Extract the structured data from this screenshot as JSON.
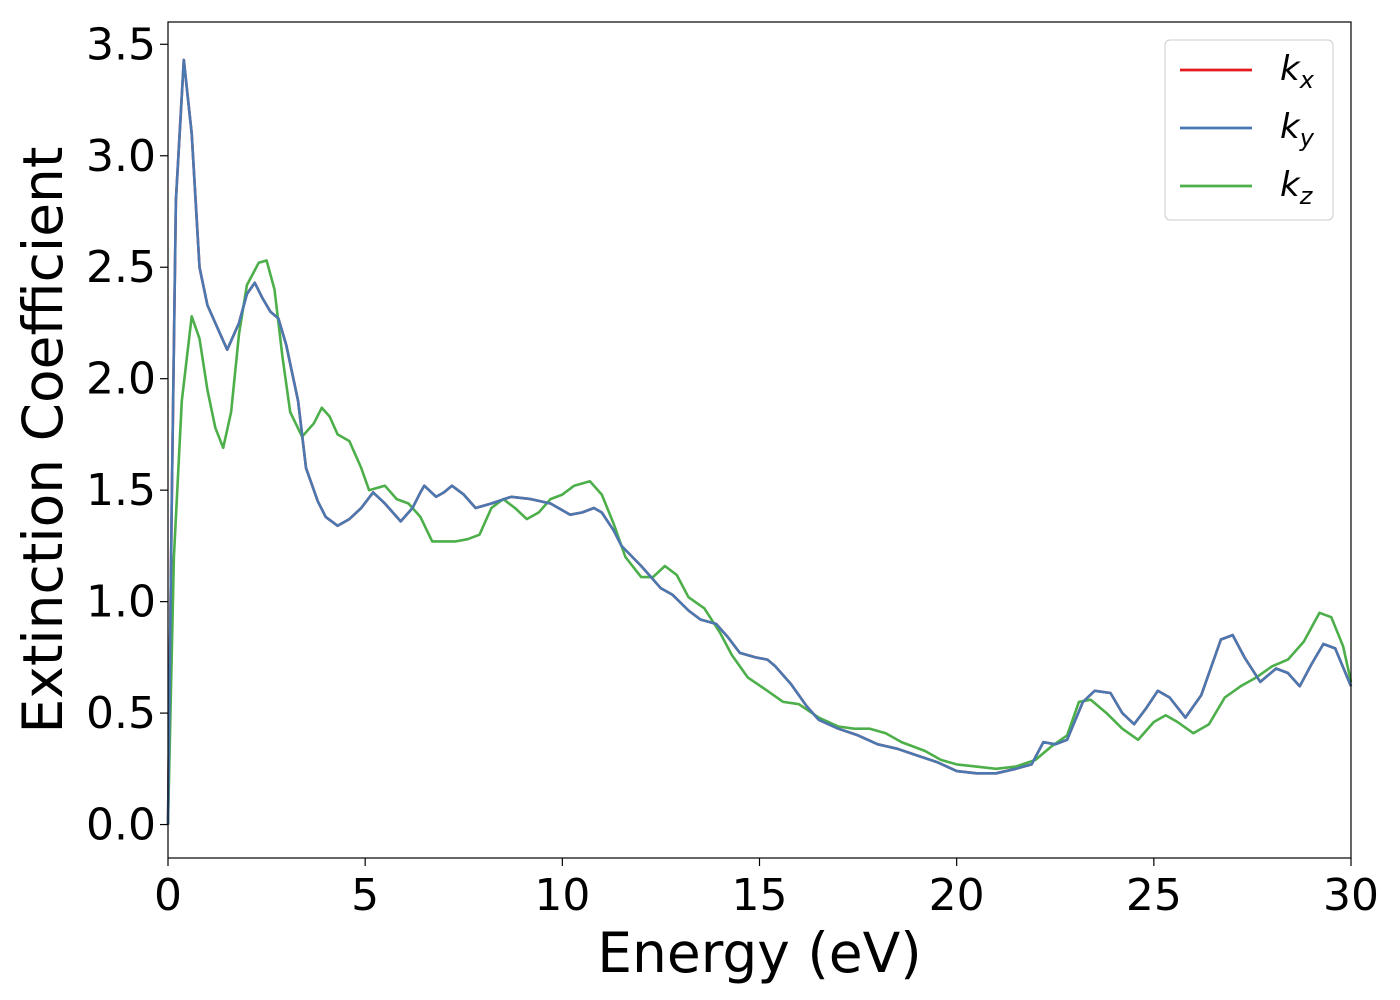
{
  "chart_data": {
    "type": "line",
    "xlabel": "Energy (eV)",
    "ylabel": "Extinction Coefficient",
    "xlim": [
      0,
      30
    ],
    "ylim": [
      -0.15,
      3.6
    ],
    "xticks": [
      0,
      5,
      10,
      15,
      20,
      25,
      30
    ],
    "xtick_labels": [
      "0",
      "5",
      "10",
      "15",
      "20",
      "25",
      "30"
    ],
    "yticks": [
      0.0,
      0.5,
      1.0,
      1.5,
      2.0,
      2.5,
      3.0,
      3.5
    ],
    "ytick_labels": [
      "0.0",
      "0.5",
      "1.0",
      "1.5",
      "2.0",
      "2.5",
      "3.0",
      "3.5"
    ],
    "grid": false,
    "legend_position": "top-right",
    "series": [
      {
        "name": "k_x",
        "label_base": "k",
        "label_sub": "x",
        "color": "#e41a1c",
        "points": [
          [
            0,
            0.0
          ],
          [
            0.1,
            1.5
          ],
          [
            0.2,
            2.8
          ],
          [
            0.4,
            3.43
          ],
          [
            0.6,
            3.1
          ],
          [
            0.8,
            2.5
          ],
          [
            1.0,
            2.33
          ],
          [
            1.2,
            2.25
          ],
          [
            1.5,
            2.13
          ],
          [
            1.8,
            2.25
          ],
          [
            2.0,
            2.38
          ],
          [
            2.2,
            2.43
          ],
          [
            2.4,
            2.36
          ],
          [
            2.6,
            2.3
          ],
          [
            2.8,
            2.27
          ],
          [
            3.0,
            2.15
          ],
          [
            3.3,
            1.9
          ],
          [
            3.5,
            1.6
          ],
          [
            3.8,
            1.45
          ],
          [
            4.0,
            1.38
          ],
          [
            4.3,
            1.34
          ],
          [
            4.6,
            1.37
          ],
          [
            4.9,
            1.42
          ],
          [
            5.2,
            1.49
          ],
          [
            5.5,
            1.44
          ],
          [
            5.9,
            1.36
          ],
          [
            6.2,
            1.42
          ],
          [
            6.4,
            1.49
          ],
          [
            6.5,
            1.52
          ],
          [
            6.8,
            1.47
          ],
          [
            7.0,
            1.49
          ],
          [
            7.2,
            1.52
          ],
          [
            7.5,
            1.48
          ],
          [
            7.8,
            1.42
          ],
          [
            8.2,
            1.44
          ],
          [
            8.7,
            1.47
          ],
          [
            9.2,
            1.46
          ],
          [
            9.7,
            1.44
          ],
          [
            10.2,
            1.39
          ],
          [
            10.5,
            1.4
          ],
          [
            10.8,
            1.42
          ],
          [
            11.0,
            1.4
          ],
          [
            11.3,
            1.32
          ],
          [
            11.5,
            1.25
          ],
          [
            12.0,
            1.16
          ],
          [
            12.5,
            1.06
          ],
          [
            12.8,
            1.03
          ],
          [
            13.2,
            0.96
          ],
          [
            13.5,
            0.92
          ],
          [
            13.9,
            0.9
          ],
          [
            14.2,
            0.84
          ],
          [
            14.5,
            0.77
          ],
          [
            14.9,
            0.75
          ],
          [
            15.2,
            0.74
          ],
          [
            15.4,
            0.71
          ],
          [
            15.8,
            0.63
          ],
          [
            16.2,
            0.53
          ],
          [
            16.5,
            0.47
          ],
          [
            17.0,
            0.43
          ],
          [
            17.5,
            0.4
          ],
          [
            18.0,
            0.36
          ],
          [
            18.5,
            0.34
          ],
          [
            19.0,
            0.31
          ],
          [
            19.5,
            0.28
          ],
          [
            20.0,
            0.24
          ],
          [
            20.5,
            0.23
          ],
          [
            21.0,
            0.23
          ],
          [
            21.5,
            0.25
          ],
          [
            21.9,
            0.27
          ],
          [
            22.2,
            0.37
          ],
          [
            22.5,
            0.36
          ],
          [
            22.8,
            0.38
          ],
          [
            23.2,
            0.55
          ],
          [
            23.5,
            0.6
          ],
          [
            23.9,
            0.59
          ],
          [
            24.2,
            0.5
          ],
          [
            24.5,
            0.45
          ],
          [
            24.8,
            0.52
          ],
          [
            25.1,
            0.6
          ],
          [
            25.4,
            0.57
          ],
          [
            25.8,
            0.48
          ],
          [
            26.2,
            0.58
          ],
          [
            26.7,
            0.83
          ],
          [
            27.0,
            0.85
          ],
          [
            27.3,
            0.75
          ],
          [
            27.7,
            0.64
          ],
          [
            28.1,
            0.7
          ],
          [
            28.4,
            0.68
          ],
          [
            28.7,
            0.62
          ],
          [
            29.0,
            0.72
          ],
          [
            29.3,
            0.81
          ],
          [
            29.6,
            0.79
          ],
          [
            30.0,
            0.62
          ]
        ]
      },
      {
        "name": "k_y",
        "label_base": "k",
        "label_sub": "y",
        "color": "#4a78b0",
        "points": [
          [
            0,
            0.0
          ],
          [
            0.1,
            1.5
          ],
          [
            0.2,
            2.8
          ],
          [
            0.4,
            3.43
          ],
          [
            0.6,
            3.1
          ],
          [
            0.8,
            2.5
          ],
          [
            1.0,
            2.33
          ],
          [
            1.2,
            2.25
          ],
          [
            1.5,
            2.13
          ],
          [
            1.8,
            2.25
          ],
          [
            2.0,
            2.38
          ],
          [
            2.2,
            2.43
          ],
          [
            2.4,
            2.36
          ],
          [
            2.6,
            2.3
          ],
          [
            2.8,
            2.27
          ],
          [
            3.0,
            2.15
          ],
          [
            3.3,
            1.9
          ],
          [
            3.5,
            1.6
          ],
          [
            3.8,
            1.45
          ],
          [
            4.0,
            1.38
          ],
          [
            4.3,
            1.34
          ],
          [
            4.6,
            1.37
          ],
          [
            4.9,
            1.42
          ],
          [
            5.2,
            1.49
          ],
          [
            5.5,
            1.44
          ],
          [
            5.9,
            1.36
          ],
          [
            6.2,
            1.42
          ],
          [
            6.4,
            1.49
          ],
          [
            6.5,
            1.52
          ],
          [
            6.8,
            1.47
          ],
          [
            7.0,
            1.49
          ],
          [
            7.2,
            1.52
          ],
          [
            7.5,
            1.48
          ],
          [
            7.8,
            1.42
          ],
          [
            8.2,
            1.44
          ],
          [
            8.7,
            1.47
          ],
          [
            9.2,
            1.46
          ],
          [
            9.7,
            1.44
          ],
          [
            10.2,
            1.39
          ],
          [
            10.5,
            1.4
          ],
          [
            10.8,
            1.42
          ],
          [
            11.0,
            1.4
          ],
          [
            11.3,
            1.32
          ],
          [
            11.5,
            1.25
          ],
          [
            12.0,
            1.16
          ],
          [
            12.5,
            1.06
          ],
          [
            12.8,
            1.03
          ],
          [
            13.2,
            0.96
          ],
          [
            13.5,
            0.92
          ],
          [
            13.9,
            0.9
          ],
          [
            14.2,
            0.84
          ],
          [
            14.5,
            0.77
          ],
          [
            14.9,
            0.75
          ],
          [
            15.2,
            0.74
          ],
          [
            15.4,
            0.71
          ],
          [
            15.8,
            0.63
          ],
          [
            16.2,
            0.53
          ],
          [
            16.5,
            0.47
          ],
          [
            17.0,
            0.43
          ],
          [
            17.5,
            0.4
          ],
          [
            18.0,
            0.36
          ],
          [
            18.5,
            0.34
          ],
          [
            19.0,
            0.31
          ],
          [
            19.5,
            0.28
          ],
          [
            20.0,
            0.24
          ],
          [
            20.5,
            0.23
          ],
          [
            21.0,
            0.23
          ],
          [
            21.5,
            0.25
          ],
          [
            21.9,
            0.27
          ],
          [
            22.2,
            0.37
          ],
          [
            22.5,
            0.36
          ],
          [
            22.8,
            0.38
          ],
          [
            23.2,
            0.55
          ],
          [
            23.5,
            0.6
          ],
          [
            23.9,
            0.59
          ],
          [
            24.2,
            0.5
          ],
          [
            24.5,
            0.45
          ],
          [
            24.8,
            0.52
          ],
          [
            25.1,
            0.6
          ],
          [
            25.4,
            0.57
          ],
          [
            25.8,
            0.48
          ],
          [
            26.2,
            0.58
          ],
          [
            26.7,
            0.83
          ],
          [
            27.0,
            0.85
          ],
          [
            27.3,
            0.75
          ],
          [
            27.7,
            0.64
          ],
          [
            28.1,
            0.7
          ],
          [
            28.4,
            0.68
          ],
          [
            28.7,
            0.62
          ],
          [
            29.0,
            0.72
          ],
          [
            29.3,
            0.81
          ],
          [
            29.6,
            0.79
          ],
          [
            30.0,
            0.62
          ]
        ]
      },
      {
        "name": "k_z",
        "label_base": "k",
        "label_sub": "z",
        "color": "#4daf4a",
        "points": [
          [
            0,
            0.0
          ],
          [
            0.15,
            1.2
          ],
          [
            0.35,
            1.9
          ],
          [
            0.6,
            2.28
          ],
          [
            0.8,
            2.18
          ],
          [
            1.0,
            1.95
          ],
          [
            1.2,
            1.78
          ],
          [
            1.4,
            1.69
          ],
          [
            1.6,
            1.85
          ],
          [
            1.8,
            2.2
          ],
          [
            2.0,
            2.42
          ],
          [
            2.3,
            2.52
          ],
          [
            2.5,
            2.53
          ],
          [
            2.7,
            2.4
          ],
          [
            2.9,
            2.1
          ],
          [
            3.1,
            1.85
          ],
          [
            3.4,
            1.74
          ],
          [
            3.7,
            1.8
          ],
          [
            3.9,
            1.87
          ],
          [
            4.1,
            1.83
          ],
          [
            4.3,
            1.75
          ],
          [
            4.6,
            1.72
          ],
          [
            4.9,
            1.6
          ],
          [
            5.1,
            1.5
          ],
          [
            5.5,
            1.52
          ],
          [
            5.8,
            1.46
          ],
          [
            6.1,
            1.44
          ],
          [
            6.4,
            1.38
          ],
          [
            6.7,
            1.27
          ],
          [
            7.0,
            1.27
          ],
          [
            7.3,
            1.27
          ],
          [
            7.6,
            1.28
          ],
          [
            7.9,
            1.3
          ],
          [
            8.2,
            1.42
          ],
          [
            8.5,
            1.46
          ],
          [
            8.8,
            1.42
          ],
          [
            9.1,
            1.37
          ],
          [
            9.4,
            1.4
          ],
          [
            9.7,
            1.46
          ],
          [
            10.0,
            1.48
          ],
          [
            10.3,
            1.52
          ],
          [
            10.7,
            1.54
          ],
          [
            11.0,
            1.48
          ],
          [
            11.3,
            1.35
          ],
          [
            11.6,
            1.2
          ],
          [
            12.0,
            1.11
          ],
          [
            12.3,
            1.11
          ],
          [
            12.6,
            1.16
          ],
          [
            12.9,
            1.12
          ],
          [
            13.2,
            1.02
          ],
          [
            13.6,
            0.97
          ],
          [
            14.0,
            0.86
          ],
          [
            14.3,
            0.76
          ],
          [
            14.7,
            0.66
          ],
          [
            15.2,
            0.6
          ],
          [
            15.6,
            0.55
          ],
          [
            16.0,
            0.54
          ],
          [
            16.5,
            0.48
          ],
          [
            17.0,
            0.44
          ],
          [
            17.4,
            0.43
          ],
          [
            17.8,
            0.43
          ],
          [
            18.2,
            0.41
          ],
          [
            18.6,
            0.37
          ],
          [
            19.2,
            0.33
          ],
          [
            19.6,
            0.29
          ],
          [
            20.0,
            0.27
          ],
          [
            20.5,
            0.26
          ],
          [
            21.0,
            0.25
          ],
          [
            21.5,
            0.26
          ],
          [
            22.0,
            0.29
          ],
          [
            22.4,
            0.35
          ],
          [
            22.8,
            0.4
          ],
          [
            23.1,
            0.55
          ],
          [
            23.4,
            0.56
          ],
          [
            23.8,
            0.5
          ],
          [
            24.2,
            0.43
          ],
          [
            24.6,
            0.38
          ],
          [
            25.0,
            0.46
          ],
          [
            25.3,
            0.49
          ],
          [
            25.6,
            0.46
          ],
          [
            26.0,
            0.41
          ],
          [
            26.4,
            0.45
          ],
          [
            26.8,
            0.57
          ],
          [
            27.2,
            0.62
          ],
          [
            27.6,
            0.66
          ],
          [
            28.0,
            0.71
          ],
          [
            28.4,
            0.74
          ],
          [
            28.8,
            0.82
          ],
          [
            29.2,
            0.95
          ],
          [
            29.5,
            0.93
          ],
          [
            29.8,
            0.8
          ],
          [
            30.0,
            0.64
          ]
        ]
      }
    ]
  }
}
